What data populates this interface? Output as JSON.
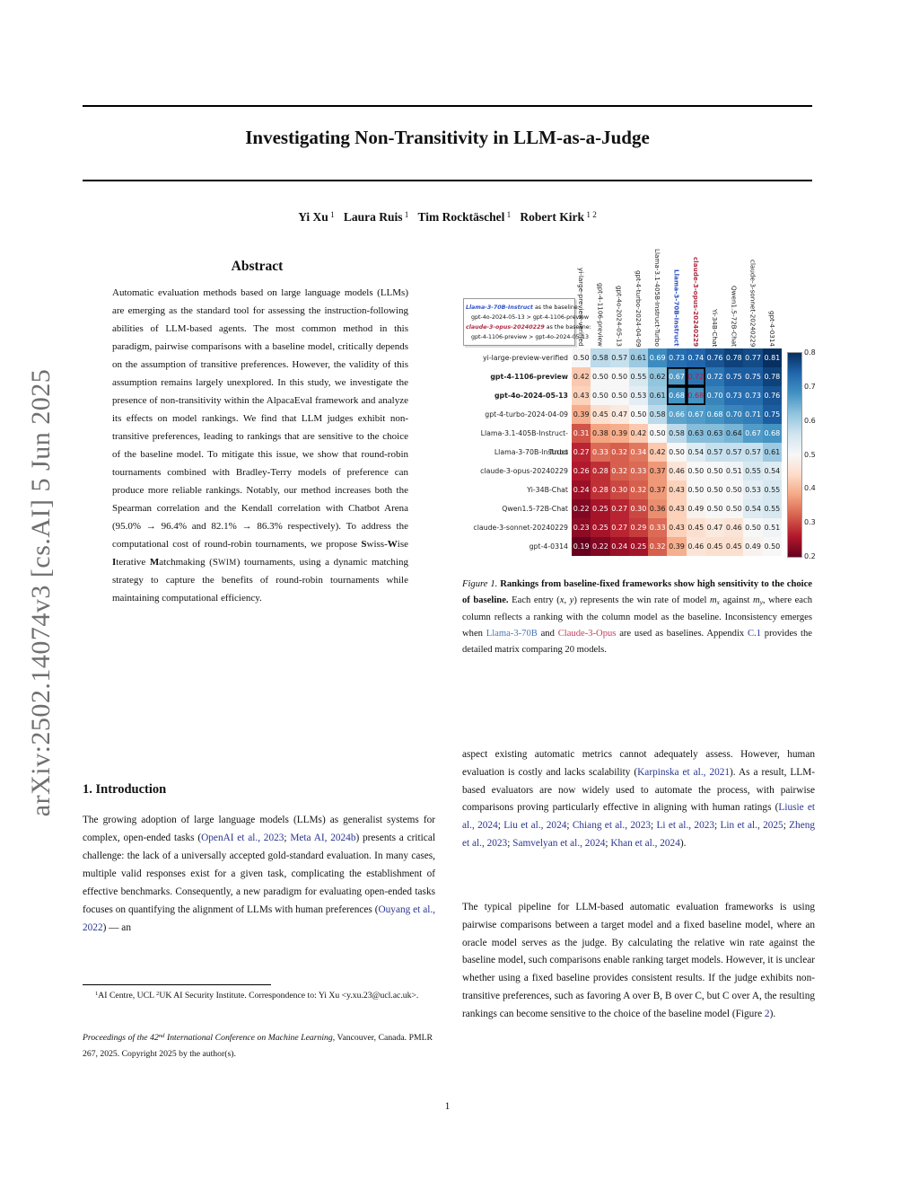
{
  "arxiv_banner": "arXiv:2502.14074v3  [cs.AI]  5 Jun 2025",
  "title": "Investigating Non-Transitivity in LLM-as-a-Judge",
  "authors_rich": [
    {
      "t": "Yi Xu",
      "c": "bold"
    },
    {
      "t": " 1",
      "c": "sup"
    },
    {
      "t": "   "
    },
    {
      "t": "Laura Ruis",
      "c": "bold"
    },
    {
      "t": " 1",
      "c": "sup"
    },
    {
      "t": "   "
    },
    {
      "t": "Tim Rocktäschel",
      "c": "bold"
    },
    {
      "t": " 1",
      "c": "sup"
    },
    {
      "t": "   "
    },
    {
      "t": "Robert Kirk",
      "c": "bold"
    },
    {
      "t": " 1 2",
      "c": "sup"
    }
  ],
  "abstract": {
    "heading": "Abstract",
    "body_rich": [
      {
        "t": "Automatic evaluation methods based on large language models (LLMs) are emerging as the standard tool for assessing the instruction-following abilities of LLM-based agents. The most common method in this paradigm, pairwise comparisons with a baseline model, critically depends on the assumption of transitive preferences. However, the validity of this assumption remains largely unexplored. In this study, we investigate the presence of non-transitivity within the AlpacaEval framework and analyze its effects on model rankings. We find that LLM judges exhibit non-transitive preferences, leading to rankings that are sensitive to the choice of the baseline model. To mitigate this issue, we show that round-robin tournaments combined with Bradley-Terry models of preference can produce more reliable rankings. Notably, our method increases both the Spearman correlation and the Kendall correlation with Chatbot Arena (95.0% → 96.4% and 82.1% → 86.3% respectively). To address the computational cost of round-robin tournaments, we propose "
      },
      {
        "t": "S",
        "c": "bold"
      },
      {
        "t": "wiss-"
      },
      {
        "t": "W",
        "c": "bold"
      },
      {
        "t": "ise "
      },
      {
        "t": "I",
        "c": "bold"
      },
      {
        "t": "terative "
      },
      {
        "t": "M",
        "c": "bold"
      },
      {
        "t": "atchmaking (S"
      },
      {
        "t": "WIM",
        "c": "smallcaps"
      },
      {
        "t": ") tournaments, using a dynamic matching strategy to capture the benefits of round-robin tournaments while maintaining computational efficiency."
      }
    ]
  },
  "sections": {
    "intro_heading": "1. Introduction",
    "intro_para_rich": [
      {
        "t": "The growing adoption of large language models (LLMs) as generalist systems for complex, open-ended tasks ("
      },
      {
        "t": "OpenAI et al., 2023",
        "c": "link"
      },
      {
        "t": "; "
      },
      {
        "t": "Meta AI, 2024b",
        "c": "link"
      },
      {
        "t": ") presents a critical challenge: the lack of a universally accepted gold-standard evaluation. In many cases, multiple valid responses exist for a given task, complicating the establishment of effective benchmarks. Consequently, a new paradigm for evaluating open-ended tasks focuses on quantifying the alignment of LLMs with human preferences ("
      },
      {
        "t": "Ouyang et al., 2022",
        "c": "link"
      },
      {
        "t": ") — an"
      }
    ],
    "right_para_1_rich": [
      {
        "t": "aspect existing automatic metrics cannot adequately assess. However, human evaluation is costly and lacks scalability ("
      },
      {
        "t": "Karpinska et al., 2021",
        "c": "link"
      },
      {
        "t": "). As a result, LLM-based evaluators are now widely used to automate the process, with pairwise comparisons proving particularly effective in aligning with human ratings ("
      },
      {
        "t": "Liusie et al., 2024",
        "c": "link"
      },
      {
        "t": "; "
      },
      {
        "t": "Liu et al., 2024",
        "c": "link"
      },
      {
        "t": "; "
      },
      {
        "t": "Chiang et al., 2023",
        "c": "link"
      },
      {
        "t": "; "
      },
      {
        "t": "Li et al., 2023",
        "c": "link"
      },
      {
        "t": "; "
      },
      {
        "t": "Lin et al., 2025",
        "c": "link"
      },
      {
        "t": "; "
      },
      {
        "t": "Zheng et al., 2023",
        "c": "link"
      },
      {
        "t": "; "
      },
      {
        "t": "Samvelyan et al., 2024",
        "c": "link"
      },
      {
        "t": "; "
      },
      {
        "t": "Khan et al., 2024",
        "c": "link"
      },
      {
        "t": ")."
      }
    ],
    "right_para_2_rich": [
      {
        "t": "The typical pipeline for LLM-based automatic evaluation frameworks is using pairwise comparisons between a target model and a fixed baseline model, where an oracle model serves as the judge. By calculating the relative win rate against the baseline model, such comparisons enable ranking target models. However, it is unclear whether using a fixed baseline provides consistent results. If the judge exhibits non-transitive preferences, such as favoring A over B, B over C, but C over A, the resulting rankings can become sensitive to the choice of the baseline model (Figure "
      },
      {
        "t": "2",
        "c": "link"
      },
      {
        "t": ")."
      }
    ]
  },
  "footnotes": {
    "affiliation_rich": [
      {
        "t": "1",
        "c": "sup"
      },
      {
        "t": "AI Centre, UCL "
      },
      {
        "t": "2",
        "c": "sup"
      },
      {
        "t": "UK AI Security Institute. Correspondence to: Yi Xu <y.xu.23@ucl.ac.uk>."
      }
    ],
    "proceedings_rich": [
      {
        "t": "Proceedings of the 42",
        "c": "italic"
      },
      {
        "t": "nd",
        "c": "supitalic"
      },
      {
        "t": " International Conference on Machine Learning",
        "c": "italic"
      },
      {
        "t": ", Vancouver, Canada. PMLR 267, 2025. Copyright 2025 by the author(s)."
      }
    ]
  },
  "figure_caption_rich": [
    {
      "t": "Figure 1.",
      "c": "italic"
    },
    {
      "t": " "
    },
    {
      "t": "Rankings from baseline-fixed frameworks show high sensitivity to the choice of baseline.",
      "c": "bold"
    },
    {
      "t": " Each entry ("
    },
    {
      "t": "x",
      "c": "math"
    },
    {
      "t": ", "
    },
    {
      "t": "y",
      "c": "math"
    },
    {
      "t": ") represents the win rate of model "
    },
    {
      "t": "m",
      "c": "math"
    },
    {
      "t": "x",
      "c": "msub"
    },
    {
      "t": " against "
    },
    {
      "t": "m",
      "c": "math"
    },
    {
      "t": "y",
      "c": "msub"
    },
    {
      "t": ", where each column reflects a ranking with the column model as the baseline. Inconsistency emerges when "
    },
    {
      "t": "Llama-3-70B",
      "c": "blue"
    },
    {
      "t": " and "
    },
    {
      "t": "Claude-3-Opus",
      "c": "red"
    },
    {
      "t": " are used as baselines. Appendix "
    },
    {
      "t": "C.1",
      "c": "link"
    },
    {
      "t": " provides the detailed matrix comparing 20 models."
    }
  ],
  "page_number": "1",
  "accent_colors": {
    "citation_link": "#2a3590",
    "llama_blue": "#4878b4",
    "claude_red": "#c23e5c",
    "legend_blue": "#3153c6",
    "legend_red": "#ae2d44",
    "cell_red_text": "#b01e44"
  },
  "chart_data": {
    "type": "heatmap",
    "title": "",
    "columns": [
      "yi-large-preview-verified",
      "gpt-4-1106-preview",
      "gpt-4o-2024-05-13",
      "gpt-4-turbo-2024-04-09",
      "Llama-3.1-405B-Instruct-Turbo",
      "Llama-3-70B-Instruct",
      "claude-3-opus-20240229",
      "Yi-34B-Chat",
      "Qwen1.5-72B-Chat",
      "claude-3-sonnet-20240229",
      "gpt-4-0314"
    ],
    "rows": [
      "yi-large-preview-verified",
      "gpt-4-1106-preview",
      "gpt-4o-2024-05-13",
      "gpt-4-turbo-2024-04-09",
      "Llama-3.1-405B-Instruct-Turbo",
      "Llama-3-70B-Instruct",
      "claude-3-opus-20240229",
      "Yi-34B-Chat",
      "Qwen1.5-72B-Chat",
      "claude-3-sonnet-20240229",
      "gpt-4-0314"
    ],
    "values": [
      [
        0.5,
        0.58,
        0.57,
        0.61,
        0.69,
        0.73,
        0.74,
        0.76,
        0.78,
        0.77,
        0.81
      ],
      [
        0.42,
        0.5,
        0.5,
        0.55,
        0.62,
        0.67,
        0.72,
        0.72,
        0.75,
        0.75,
        0.78
      ],
      [
        0.43,
        0.5,
        0.5,
        0.53,
        0.61,
        0.68,
        0.68,
        0.7,
        0.73,
        0.73,
        0.76
      ],
      [
        0.39,
        0.45,
        0.47,
        0.5,
        0.58,
        0.66,
        0.67,
        0.68,
        0.7,
        0.71,
        0.75
      ],
      [
        0.31,
        0.38,
        0.39,
        0.42,
        0.5,
        0.58,
        0.63,
        0.63,
        0.64,
        0.67,
        0.68
      ],
      [
        0.27,
        0.33,
        0.32,
        0.34,
        0.42,
        0.5,
        0.54,
        0.57,
        0.57,
        0.57,
        0.61
      ],
      [
        0.26,
        0.28,
        0.32,
        0.33,
        0.37,
        0.46,
        0.5,
        0.5,
        0.51,
        0.55,
        0.54
      ],
      [
        0.24,
        0.28,
        0.3,
        0.32,
        0.37,
        0.43,
        0.5,
        0.5,
        0.5,
        0.53,
        0.55
      ],
      [
        0.22,
        0.25,
        0.27,
        0.3,
        0.36,
        0.43,
        0.49,
        0.5,
        0.5,
        0.54,
        0.55
      ],
      [
        0.23,
        0.25,
        0.27,
        0.29,
        0.33,
        0.43,
        0.45,
        0.47,
        0.46,
        0.5,
        0.51
      ],
      [
        0.19,
        0.22,
        0.24,
        0.25,
        0.32,
        0.39,
        0.46,
        0.45,
        0.45,
        0.49,
        0.5
      ]
    ],
    "vmin": 0.2,
    "vmax": 0.8,
    "colorbar_ticks": [
      "0.8",
      "0.7",
      "0.6",
      "0.5",
      "0.4",
      "0.3",
      "0.2"
    ],
    "bold_row_labels": [
      1,
      2
    ],
    "blue_col_label": 5,
    "red_col_label": 6,
    "highlighted_cells": [
      [
        1,
        5
      ],
      [
        1,
        6
      ],
      [
        2,
        5
      ],
      [
        2,
        6
      ]
    ],
    "red_text_cells": [
      [
        1,
        6
      ],
      [
        2,
        6
      ]
    ],
    "legend_lines": [
      {
        "indent": false,
        "segments": [
          {
            "t": "Llama-3-70B-Instruct",
            "c": "blue-bi"
          },
          {
            "t": " as the baseline:"
          }
        ]
      },
      {
        "indent": true,
        "segments": [
          {
            "t": "gpt-4o-2024-05-13 > gpt-4-1106-preview"
          }
        ]
      },
      {
        "indent": false,
        "segments": [
          {
            "t": "claude-3-opus-20240229",
            "c": "red-bi"
          },
          {
            "t": " as the baseline:"
          }
        ]
      },
      {
        "indent": true,
        "segments": [
          {
            "t": "gpt-4-1106-preview > gpt-4o-2024-05-13"
          }
        ]
      }
    ]
  }
}
